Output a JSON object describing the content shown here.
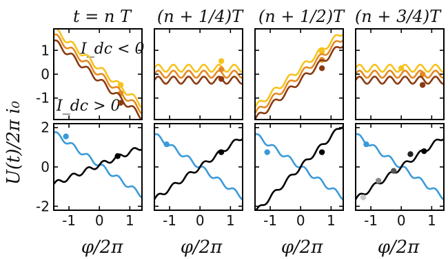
{
  "figure": {
    "column_titles": [
      "t = n T",
      "(n + 1/4)T",
      "(n + 1/2)T",
      "(n + 3/4)T"
    ],
    "ylabel": "U(t)/2π i₀",
    "xlabel": "φ/2π",
    "annotations": {
      "idc_neg": "I_dc < 0",
      "idc_pos": "I_dc > 0"
    },
    "colors": {
      "light": "#f6c21c",
      "mid": "#e58a22",
      "dark": "#8a3a10",
      "blue": "#3a9ad9",
      "black": "#000000",
      "gray1": "#c8c8c8",
      "gray2": "#8a8a8a",
      "gray3": "#555555",
      "gray4": "#222222"
    }
  },
  "chart_data": [
    {
      "type": "line",
      "row": "top",
      "column": "t = n T",
      "xlim": [
        -1.5,
        1.4
      ],
      "ylim": [
        -1.9,
        1.9
      ],
      "xticks": [
        -1,
        0,
        1
      ],
      "yticks": [
        -1,
        0,
        1
      ],
      "series": [
        {
          "color": "light",
          "slope": -1.1,
          "offset": 0.25,
          "ripple": 0.12,
          "dot": [
            0.7,
            -0.45
          ]
        },
        {
          "color": "mid",
          "slope": -1.1,
          "offset": 0.0,
          "ripple": 0.12,
          "dot": [
            0.7,
            -0.8
          ]
        },
        {
          "color": "dark",
          "slope": -1.1,
          "offset": -0.25,
          "ripple": 0.12,
          "dot": [
            0.7,
            -1.2
          ]
        }
      ]
    },
    {
      "type": "line",
      "row": "top",
      "column": "(n + 1/4)T",
      "xlim": [
        -1.5,
        1.4
      ],
      "ylim": [
        -1.9,
        1.9
      ],
      "xticks": [
        -1,
        0,
        1
      ],
      "yticks": [
        -1,
        0,
        1
      ],
      "series": [
        {
          "color": "light",
          "slope": 0.0,
          "offset": 0.25,
          "ripple": 0.15,
          "dot": [
            0.7,
            0.55
          ]
        },
        {
          "color": "mid",
          "slope": 0.0,
          "offset": 0.0,
          "ripple": 0.15,
          "dot": [
            0.7,
            0.2
          ]
        },
        {
          "color": "dark",
          "slope": 0.0,
          "offset": -0.25,
          "ripple": 0.15,
          "dot": [
            0.7,
            -0.2
          ]
        }
      ]
    },
    {
      "type": "line",
      "row": "top",
      "column": "(n + 1/2)T",
      "xlim": [
        -1.5,
        1.4
      ],
      "ylim": [
        -1.9,
        1.9
      ],
      "xticks": [
        -1,
        0,
        1
      ],
      "yticks": [
        -1,
        0,
        1
      ],
      "series": [
        {
          "color": "light",
          "slope": 1.1,
          "offset": 0.25,
          "ripple": 0.12,
          "dot": [
            0.7,
            0.95
          ]
        },
        {
          "color": "mid",
          "slope": 1.1,
          "offset": 0.0,
          "ripple": 0.12,
          "dot": [
            0.7,
            0.6
          ]
        },
        {
          "color": "dark",
          "slope": 1.1,
          "offset": -0.25,
          "ripple": 0.12,
          "dot": [
            0.7,
            0.25
          ]
        }
      ]
    },
    {
      "type": "line",
      "row": "top",
      "column": "(n + 3/4)T",
      "xlim": [
        -1.5,
        1.4
      ],
      "ylim": [
        -1.9,
        1.9
      ],
      "xticks": [
        -1,
        0,
        1
      ],
      "yticks": [
        -1,
        0,
        1
      ],
      "series": [
        {
          "color": "light",
          "slope": 0.0,
          "offset": 0.25,
          "ripple": 0.15,
          "dot": [
            0.0,
            0.25
          ]
        },
        {
          "color": "mid",
          "slope": 0.0,
          "offset": 0.0,
          "ripple": 0.15,
          "dot": [
            0.7,
            0.0
          ]
        },
        {
          "color": "dark",
          "slope": 0.0,
          "offset": -0.25,
          "ripple": 0.15,
          "dot": [
            0.7,
            -0.45
          ]
        }
      ]
    },
    {
      "type": "line",
      "row": "bottom",
      "column": "t = n T",
      "xlim": [
        -1.5,
        1.4
      ],
      "ylim": [
        -2.2,
        2.2
      ],
      "xticks": [
        -1,
        0,
        1
      ],
      "yticks": [
        -2,
        0,
        2
      ],
      "series": [
        {
          "color": "blue",
          "slope": -1.1,
          "offset": 0.1,
          "ripple": 0.12,
          "dot": [
            -1.1,
            1.55
          ]
        },
        {
          "color": "black",
          "slope": 0.65,
          "offset": 0.1,
          "ripple": 0.12,
          "dot": [
            0.6,
            0.55
          ]
        }
      ]
    },
    {
      "type": "line",
      "row": "bottom",
      "column": "(n + 1/4)T",
      "xlim": [
        -1.5,
        1.4
      ],
      "ylim": [
        -2.2,
        2.2
      ],
      "xticks": [
        -1,
        0,
        1
      ],
      "yticks": [
        -2,
        0,
        2
      ],
      "series": [
        {
          "color": "blue",
          "slope": -1.1,
          "offset": 0.0,
          "ripple": 0.12,
          "dot": [
            -1.1,
            1.15
          ]
        },
        {
          "color": "black",
          "slope": 1.1,
          "offset": 0.0,
          "ripple": 0.12,
          "dot": [
            0.7,
            0.75
          ]
        }
      ]
    },
    {
      "type": "line",
      "row": "bottom",
      "column": "(n + 1/2)T",
      "xlim": [
        -1.5,
        1.4
      ],
      "ylim": [
        -2.2,
        2.2
      ],
      "xticks": [
        -1,
        0,
        1
      ],
      "yticks": [
        -2,
        0,
        2
      ],
      "series": [
        {
          "color": "blue",
          "slope": -1.1,
          "offset": 0.0,
          "ripple": 0.12,
          "dot": [
            -1.1,
            0.75
          ]
        },
        {
          "color": "black",
          "slope": 1.55,
          "offset": 0.0,
          "ripple": 0.12,
          "dot": [
            0.7,
            0.75
          ]
        }
      ]
    },
    {
      "type": "line",
      "row": "bottom",
      "column": "(n + 3/4)T",
      "xlim": [
        -1.5,
        1.4
      ],
      "ylim": [
        -2.2,
        2.2
      ],
      "xticks": [
        -1,
        0,
        1
      ],
      "yticks": [
        -2,
        0,
        2
      ],
      "series": [
        {
          "color": "blue",
          "slope": -1.1,
          "offset": 0.0,
          "ripple": 0.12,
          "dot": [
            -1.15,
            1.15
          ]
        },
        {
          "color": "black",
          "slope": 1.1,
          "offset": 0.0,
          "ripple": 0.12
        }
      ],
      "points": [
        {
          "color": "gray1",
          "x": -1.25,
          "y": -1.55
        },
        {
          "color": "gray2",
          "x": -0.75,
          "y": -0.7
        },
        {
          "color": "gray3",
          "x": -0.25,
          "y": -0.2
        },
        {
          "color": "gray4",
          "x": 0.3,
          "y": 0.65
        },
        {
          "color": "black",
          "x": 0.75,
          "y": 0.8
        }
      ]
    }
  ]
}
